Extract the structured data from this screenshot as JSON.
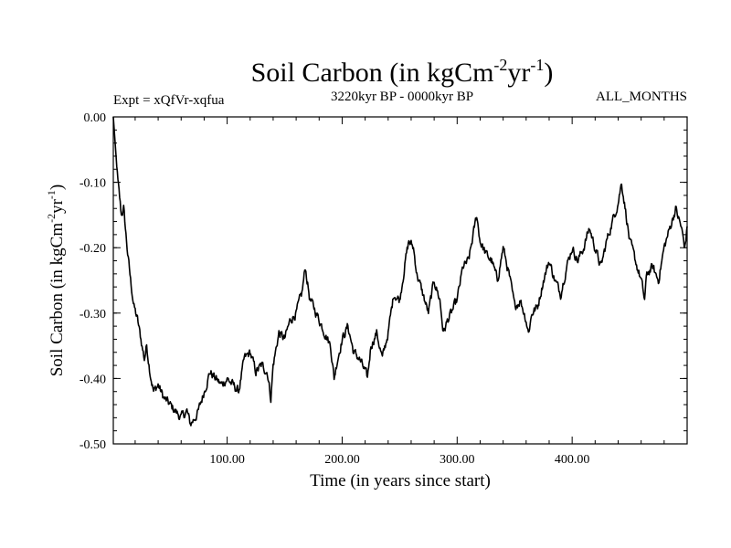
{
  "chart_data": {
    "type": "line",
    "title": "Soil Carbon (in kgCm",
    "title_sup1": "-2",
    "title_mid": "yr",
    "title_sup2": "-1",
    "title_end": ")",
    "subtitle_left": "Expt = xQfVr-xqfua",
    "subtitle_center": "3220kyr BP - 0000kyr BP",
    "subtitle_right": "ALL_MONTHS",
    "xlabel": "Time (in years since start)",
    "ylabel": "Soil Carbon (in kgCm",
    "ylabel_sup1": "-2",
    "ylabel_mid": "yr",
    "ylabel_sup2": "-1",
    "ylabel_end": ")",
    "xlim": [
      1,
      500
    ],
    "ylim": [
      -0.5,
      0.0
    ],
    "xticks": [
      100,
      200,
      300,
      400
    ],
    "xtick_labels": [
      "100.00",
      "200.00",
      "300.00",
      "400.00"
    ],
    "yticks": [
      0.0,
      -0.1,
      -0.2,
      -0.3,
      -0.4,
      -0.5
    ],
    "ytick_labels": [
      "0.00",
      "-0.10",
      "-0.20",
      "-0.30",
      "-0.40",
      "-0.50"
    ],
    "line_color": "#000000",
    "series": [
      {
        "name": "soil-carbon",
        "x": [
          1,
          3,
          5,
          8,
          10,
          13,
          16,
          19,
          22,
          25,
          28,
          30,
          33,
          36,
          40,
          45,
          50,
          55,
          60,
          65,
          68,
          72,
          75,
          80,
          85,
          90,
          95,
          100,
          105,
          110,
          115,
          120,
          125,
          130,
          135,
          138,
          140,
          145,
          150,
          155,
          160,
          165,
          168,
          172,
          175,
          180,
          185,
          190,
          193,
          196,
          200,
          205,
          210,
          215,
          220,
          222,
          225,
          230,
          235,
          240,
          245,
          250,
          255,
          258,
          262,
          265,
          270,
          275,
          280,
          285,
          288,
          292,
          295,
          300,
          305,
          310,
          315,
          317,
          320,
          325,
          330,
          335,
          340,
          345,
          350,
          355,
          360,
          362,
          365,
          370,
          375,
          380,
          385,
          390,
          395,
          400,
          405,
          410,
          415,
          420,
          425,
          430,
          435,
          440,
          443,
          447,
          450,
          455,
          460,
          463,
          465,
          470,
          475,
          480,
          485,
          490,
          495,
          498,
          500
        ],
        "values": [
          0.0,
          -0.05,
          -0.1,
          -0.15,
          -0.14,
          -0.2,
          -0.25,
          -0.29,
          -0.31,
          -0.34,
          -0.37,
          -0.35,
          -0.39,
          -0.42,
          -0.41,
          -0.43,
          -0.44,
          -0.45,
          -0.46,
          -0.45,
          -0.47,
          -0.46,
          -0.45,
          -0.42,
          -0.39,
          -0.4,
          -0.41,
          -0.4,
          -0.41,
          -0.42,
          -0.37,
          -0.36,
          -0.39,
          -0.38,
          -0.39,
          -0.43,
          -0.38,
          -0.33,
          -0.34,
          -0.31,
          -0.3,
          -0.27,
          -0.23,
          -0.28,
          -0.29,
          -0.31,
          -0.33,
          -0.35,
          -0.4,
          -0.37,
          -0.34,
          -0.32,
          -0.36,
          -0.37,
          -0.39,
          -0.4,
          -0.35,
          -0.33,
          -0.37,
          -0.33,
          -0.27,
          -0.28,
          -0.22,
          -0.19,
          -0.2,
          -0.24,
          -0.27,
          -0.3,
          -0.25,
          -0.28,
          -0.33,
          -0.31,
          -0.3,
          -0.28,
          -0.23,
          -0.22,
          -0.17,
          -0.15,
          -0.19,
          -0.21,
          -0.22,
          -0.25,
          -0.2,
          -0.24,
          -0.29,
          -0.28,
          -0.31,
          -0.33,
          -0.3,
          -0.29,
          -0.25,
          -0.22,
          -0.25,
          -0.27,
          -0.23,
          -0.2,
          -0.22,
          -0.2,
          -0.17,
          -0.2,
          -0.23,
          -0.19,
          -0.16,
          -0.13,
          -0.1,
          -0.15,
          -0.19,
          -0.22,
          -0.25,
          -0.28,
          -0.24,
          -0.23,
          -0.25,
          -0.2,
          -0.17,
          -0.14,
          -0.17,
          -0.2,
          -0.17
        ]
      }
    ]
  }
}
